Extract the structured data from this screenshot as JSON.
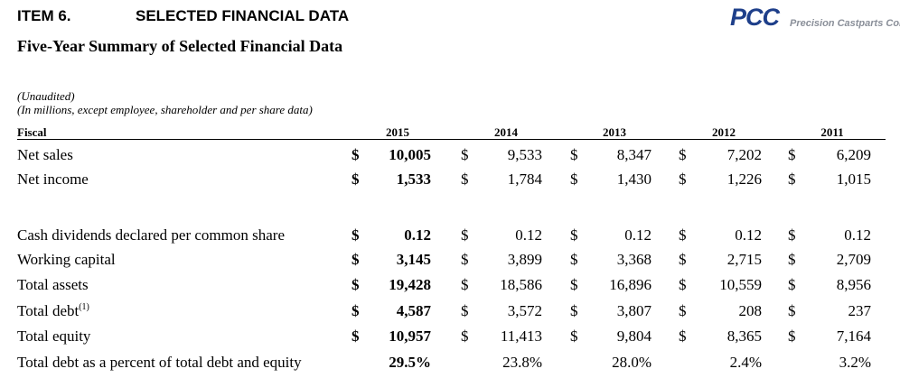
{
  "header": {
    "item_label": "ITEM 6.",
    "item_title": "SELECTED FINANCIAL DATA",
    "subtitle": "Five-Year Summary of Selected Financial Data",
    "logo": {
      "mark": "PCC",
      "text": "Precision Castparts Corp.",
      "color": "#1e3f8a"
    }
  },
  "notes": {
    "unaudited": "(Unaudited)",
    "units": "(In millions, except employee, shareholder and per share data)"
  },
  "table": {
    "fiscal_label": "Fiscal",
    "years": [
      "2015",
      "2014",
      "2013",
      "2012",
      "2011"
    ],
    "currency_symbol": "$",
    "rows": [
      {
        "label": "Net sales",
        "values": [
          "10,005",
          "9,533",
          "8,347",
          "7,202",
          "6,209"
        ],
        "currency": true
      },
      {
        "label": "Net income",
        "values": [
          "1,533",
          "1,784",
          "1,430",
          "1,226",
          "1,015"
        ],
        "currency": true
      },
      {
        "label": "Cash dividends declared per common share",
        "values": [
          "0.12",
          "0.12",
          "0.12",
          "0.12",
          "0.12"
        ],
        "currency": true
      },
      {
        "label": "Working capital",
        "values": [
          "3,145",
          "3,899",
          "3,368",
          "2,715",
          "2,709"
        ],
        "currency": true
      },
      {
        "label": "Total assets",
        "values": [
          "19,428",
          "18,586",
          "16,896",
          "10,559",
          "8,956"
        ],
        "currency": true
      },
      {
        "label": "Total debt",
        "footnote": "(1)",
        "values": [
          "4,587",
          "3,572",
          "3,807",
          "208",
          "237"
        ],
        "currency": true
      },
      {
        "label": "Total equity",
        "values": [
          "10,957",
          "11,413",
          "9,804",
          "8,365",
          "7,164"
        ],
        "currency": true
      },
      {
        "label": "Total debt as a percent of total debt and equity",
        "values": [
          "29.5%",
          "23.8%",
          "28.0%",
          "2.4%",
          "3.2%"
        ],
        "currency": false
      }
    ]
  }
}
